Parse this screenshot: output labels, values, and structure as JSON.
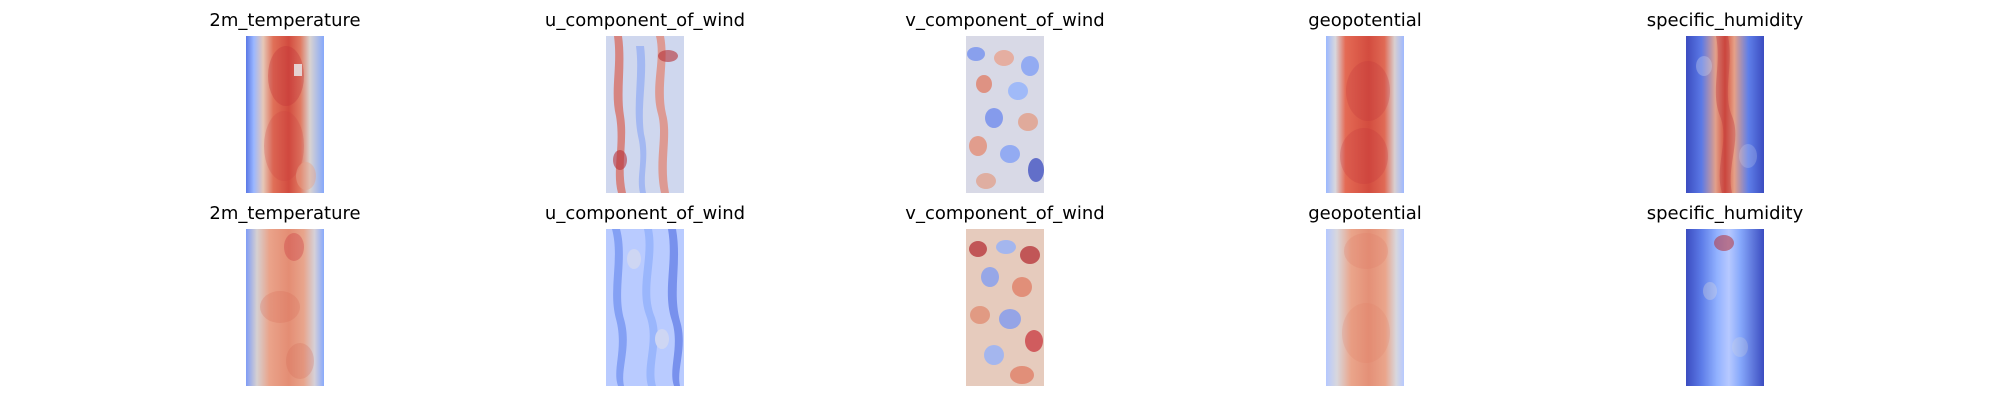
{
  "figure": {
    "background": "#ffffff",
    "rows": [
      {
        "panels": [
          {
            "title": "2m_temperature",
            "style": "temp_hot"
          },
          {
            "title": "u_component_of_wind",
            "style": "wind_mixed"
          },
          {
            "title": "v_component_of_wind",
            "style": "wind_noisy"
          },
          {
            "title": "geopotential",
            "style": "geo_hot"
          },
          {
            "title": "specific_humidity",
            "style": "humid_band"
          }
        ]
      },
      {
        "panels": [
          {
            "title": "2m_temperature",
            "style": "temp_warm"
          },
          {
            "title": "u_component_of_wind",
            "style": "wind_cool"
          },
          {
            "title": "v_component_of_wind",
            "style": "wind_warm_noisy"
          },
          {
            "title": "geopotential",
            "style": "geo_warm"
          },
          {
            "title": "specific_humidity",
            "style": "humid_cool"
          }
        ]
      }
    ]
  },
  "colormap": {
    "name": "coolwarm",
    "cold": "#3b4cc0",
    "mid": "#dddddd",
    "hot": "#b40426"
  }
}
